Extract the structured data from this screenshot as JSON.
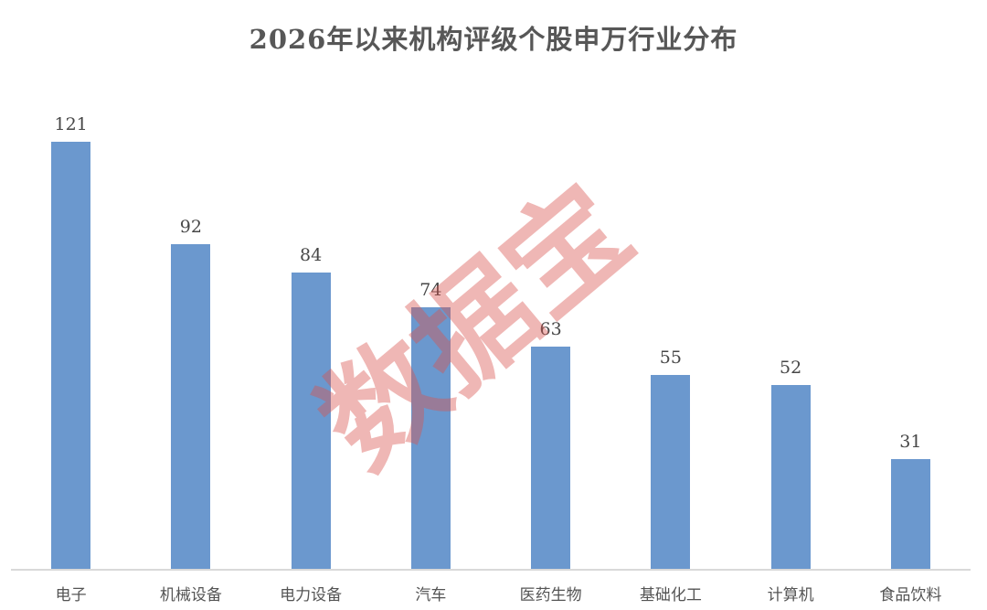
{
  "chart_data": {
    "type": "bar",
    "title": "2026年以来机构评级个股申万行业分布",
    "categories": [
      "电子",
      "机械设备",
      "电力设备",
      "汽车",
      "医药生物",
      "基础化工",
      "计算机",
      "食品饮料"
    ],
    "values": [
      121,
      92,
      84,
      74,
      63,
      55,
      52,
      31
    ],
    "xlabel": "",
    "ylabel": "",
    "ylim": [
      0,
      130
    ],
    "grid": false,
    "legend": "none",
    "value_labels_shown": true,
    "colors": {
      "bar": "#6B98CE",
      "title_text": "#575757",
      "value_label_text": "#474747",
      "category_label_text": "#545454",
      "axis_line": "#d9d9d9",
      "background": "#ffffff"
    },
    "watermark": {
      "text": "数据宝",
      "color": "rgba(217,83,79,0.42)",
      "rotation_deg": -40
    }
  }
}
